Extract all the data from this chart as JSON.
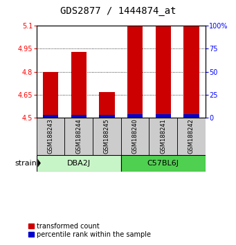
{
  "title": "GDS2877 / 1444874_at",
  "samples": [
    "GSM188243",
    "GSM188244",
    "GSM188245",
    "GSM188240",
    "GSM188241",
    "GSM188242"
  ],
  "red_values": [
    4.8,
    4.93,
    4.67,
    5.1,
    5.1,
    5.1
  ],
  "blue_pct": [
    3.0,
    3.0,
    3.0,
    4.0,
    4.0,
    4.0
  ],
  "ymin": 4.5,
  "ymax": 5.1,
  "yticks": [
    4.5,
    4.65,
    4.8,
    4.95,
    5.1
  ],
  "ytick_labels": [
    "4.5",
    "4.65",
    "4.8",
    "4.95",
    "5.1"
  ],
  "right_yticks": [
    0,
    25,
    50,
    75,
    100
  ],
  "right_ytick_labels": [
    "0",
    "25",
    "50",
    "75",
    "100%"
  ],
  "groups": [
    {
      "label": "DBA2J",
      "start": 0,
      "end": 2,
      "color": "#c8f5c8"
    },
    {
      "label": "C57BL6J",
      "start": 3,
      "end": 5,
      "color": "#50d050"
    }
  ],
  "group_label": "strain",
  "bar_width": 0.55,
  "red_color": "#cc0000",
  "blue_color": "#0000cc",
  "bg_color": "#ffffff",
  "title_fontsize": 10,
  "tick_fontsize": 7,
  "sample_fontsize": 6,
  "legend_fontsize": 7,
  "group_fontsize": 8
}
